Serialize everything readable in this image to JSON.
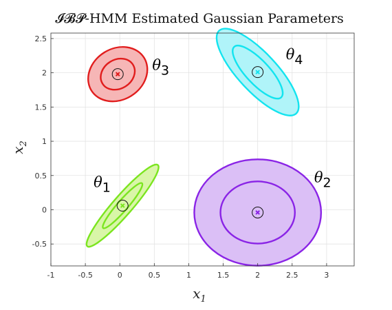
{
  "chart_data": {
    "type": "scatter",
    "title": "𝓘𝓑𝓟-HMM Estimated Gaussian Parameters",
    "xlabel": "x",
    "xlabel_sub": "1",
    "ylabel": "x",
    "ylabel_sub": "2",
    "xlim": [
      -1,
      3.4
    ],
    "ylim": [
      -0.82,
      2.58
    ],
    "xticks": [
      "-1",
      "-0.5",
      "0",
      "0.5",
      "1",
      "1.5",
      "2",
      "2.5",
      "3"
    ],
    "xtick_values": [
      -1,
      -0.5,
      0,
      0.5,
      1,
      1.5,
      2,
      2.5,
      3
    ],
    "yticks": [
      "-0.5",
      "0",
      "0.5",
      "1",
      "1.5",
      "2",
      "2.5"
    ],
    "ytick_values": [
      -0.5,
      0,
      0.5,
      1,
      1.5,
      2,
      2.5
    ],
    "grid": true,
    "series": [
      {
        "name": "θ1",
        "label_base": "θ",
        "label_sub": "1",
        "mean": [
          0.04,
          0.06
        ],
        "outer_ellipse": {
          "rx": 0.78,
          "ry": 0.14,
          "angle_deg": 49
        },
        "inner_ellipse": {
          "rx": 0.43,
          "ry": 0.075,
          "angle_deg": 49
        },
        "color_fill": "#d9f6a8",
        "color_line": "#7be51f",
        "marker_color": "#7be51f",
        "label_pos": [
          -0.38,
          0.33
        ]
      },
      {
        "name": "θ2",
        "label_base": "θ",
        "label_sub": "2",
        "mean": [
          2.0,
          -0.04
        ],
        "outer_ellipse": {
          "rx": 0.92,
          "ry": 0.77,
          "angle_deg": 0
        },
        "inner_ellipse": {
          "rx": 0.54,
          "ry": 0.45,
          "angle_deg": 0
        },
        "color_fill": "#dbbff6",
        "color_line": "#8a24e6",
        "marker_color": "#8a24e6",
        "label_pos": [
          2.82,
          0.4
        ]
      },
      {
        "name": "θ3",
        "label_base": "θ",
        "label_sub": "3",
        "mean": [
          -0.03,
          1.98
        ],
        "outer_ellipse": {
          "rx": 0.45,
          "ry": 0.37,
          "angle_deg": 32
        },
        "inner_ellipse": {
          "rx": 0.26,
          "ry": 0.21,
          "angle_deg": 32
        },
        "color_fill": "#f6b6b6",
        "color_line": "#e11d1d",
        "marker_color": "#e11d1d",
        "label_pos": [
          0.47,
          2.04
        ]
      },
      {
        "name": "θ4",
        "label_base": "θ",
        "label_sub": "4",
        "mean": [
          2.0,
          2.01
        ],
        "outer_ellipse": {
          "rx": 0.82,
          "ry": 0.28,
          "angle_deg": -47
        },
        "inner_ellipse": {
          "rx": 0.5,
          "ry": 0.17,
          "angle_deg": -47
        },
        "color_fill": "#b0f4f9",
        "color_line": "#13e4ef",
        "marker_color": "#13e4ef",
        "label_pos": [
          2.41,
          2.2
        ]
      }
    ]
  }
}
